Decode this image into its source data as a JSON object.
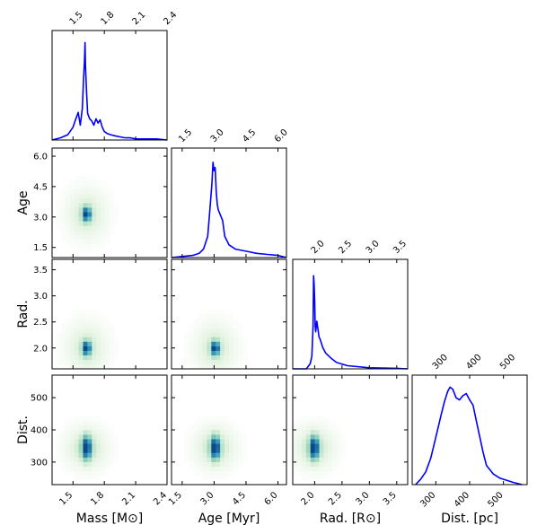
{
  "chart_data": {
    "type": "corner",
    "parameters": [
      {
        "key": "mass",
        "row_label": "",
        "col_label": "Mass [M⊙]",
        "ticks": [
          "1.5",
          "1.8",
          "2.1",
          "2.4"
        ],
        "range": [
          1.3,
          2.4
        ]
      },
      {
        "key": "age",
        "row_label": "Age",
        "col_label": "Age [Myr]",
        "ticks": [
          "1.5",
          "3.0",
          "4.5",
          "6.0"
        ],
        "range": [
          1.0,
          6.4
        ]
      },
      {
        "key": "rad",
        "row_label": "Rad.",
        "col_label": "Rad. [R⊙]",
        "ticks": [
          "2.0",
          "2.5",
          "3.0",
          "3.5"
        ],
        "range": [
          1.6,
          3.7
        ]
      },
      {
        "key": "dist",
        "row_label": "Dist.",
        "col_label": "Dist. [pc]",
        "ticks": [
          "300",
          "400",
          "500"
        ],
        "range": [
          230,
          570
        ]
      }
    ],
    "histograms": {
      "mass": {
        "x": [
          1.3,
          1.38,
          1.45,
          1.5,
          1.52,
          1.55,
          1.57,
          1.59,
          1.6,
          1.61,
          1.615,
          1.62,
          1.63,
          1.64,
          1.66,
          1.68,
          1.7,
          1.72,
          1.74,
          1.76,
          1.78,
          1.8,
          1.83,
          1.86,
          1.9,
          1.95,
          2.0,
          2.05,
          2.1,
          2.2,
          2.3,
          2.4
        ],
        "y": [
          0,
          0.02,
          0.05,
          0.12,
          0.18,
          0.26,
          0.14,
          0.3,
          0.55,
          0.75,
          0.92,
          0.7,
          0.45,
          0.25,
          0.2,
          0.18,
          0.14,
          0.2,
          0.16,
          0.19,
          0.12,
          0.08,
          0.06,
          0.05,
          0.04,
          0.03,
          0.02,
          0.02,
          0.01,
          0.01,
          0.01,
          0
        ]
      },
      "age": {
        "x": [
          1.0,
          1.5,
          2.0,
          2.3,
          2.5,
          2.7,
          2.8,
          2.9,
          2.95,
          3.0,
          3.05,
          3.1,
          3.15,
          3.2,
          3.3,
          3.4,
          3.5,
          3.7,
          4.0,
          4.5,
          5.0,
          5.5,
          6.0,
          6.4
        ],
        "y": [
          0,
          0.01,
          0.02,
          0.04,
          0.08,
          0.2,
          0.45,
          0.7,
          0.9,
          0.82,
          0.85,
          0.62,
          0.5,
          0.45,
          0.4,
          0.35,
          0.2,
          0.12,
          0.08,
          0.06,
          0.04,
          0.03,
          0.02,
          0
        ]
      },
      "rad": {
        "x": [
          1.6,
          1.85,
          1.92,
          1.95,
          1.97,
          1.98,
          1.99,
          2.0,
          2.01,
          2.02,
          2.04,
          2.06,
          2.08,
          2.1,
          2.15,
          2.2,
          2.3,
          2.4,
          2.6,
          3.0,
          3.5,
          3.7
        ],
        "y": [
          0,
          0.0,
          0.05,
          0.12,
          0.4,
          0.88,
          0.8,
          0.65,
          0.4,
          0.35,
          0.45,
          0.38,
          0.3,
          0.28,
          0.2,
          0.15,
          0.1,
          0.06,
          0.03,
          0.01,
          0.005,
          0
        ]
      },
      "dist": {
        "x": [
          240,
          255,
          270,
          285,
          300,
          315,
          325,
          335,
          342,
          350,
          360,
          370,
          380,
          390,
          400,
          410,
          420,
          430,
          440,
          450,
          470,
          490,
          510,
          530,
          555
        ],
        "y": [
          0,
          0.05,
          0.12,
          0.25,
          0.45,
          0.65,
          0.78,
          0.88,
          0.92,
          0.9,
          0.82,
          0.8,
          0.84,
          0.86,
          0.8,
          0.75,
          0.6,
          0.45,
          0.3,
          0.18,
          0.1,
          0.06,
          0.04,
          0.02,
          0
        ]
      }
    },
    "density_peaks": {
      "age_vs_mass": [
        1.63,
        3.15
      ],
      "rad_vs_mass": [
        1.63,
        2.0
      ],
      "rad_vs_age": [
        3.05,
        2.0
      ],
      "dist_vs_mass": [
        1.63,
        345
      ],
      "dist_vs_age": [
        3.05,
        345
      ],
      "dist_vs_rad": [
        1.99,
        345
      ]
    },
    "colormap": [
      "#ffffff",
      "#e6f4e3",
      "#9fd8b9",
      "#3a9fc0",
      "#0a4a8c"
    ],
    "line_color": "#0000ff",
    "grid": false
  }
}
